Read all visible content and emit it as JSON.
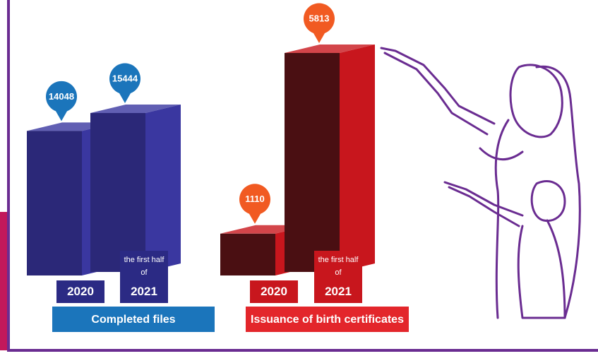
{
  "chart_data": [
    {
      "type": "bar3d",
      "title": "Completed files",
      "categories": [
        "2020",
        "2021"
      ],
      "category_prefixes": [
        null,
        "the first half of"
      ],
      "values": [
        14048,
        15444
      ],
      "color": "#2b2878",
      "side_color": "#3a37a0",
      "pin_color": "#1b75bb",
      "label_color": "#2b2a84",
      "title_color": "#1b75bb"
    },
    {
      "type": "bar3d",
      "title": "Issuance of birth certificates",
      "categories": [
        "2020",
        "2021"
      ],
      "category_prefixes": [
        null,
        "the first half of"
      ],
      "values": [
        1110,
        5813
      ],
      "color": "#4a0f12",
      "side_color": "#c8161d",
      "pin_color": "#f15a22",
      "label_color": "#c8161d",
      "title_color": "#e3262b"
    }
  ]
}
